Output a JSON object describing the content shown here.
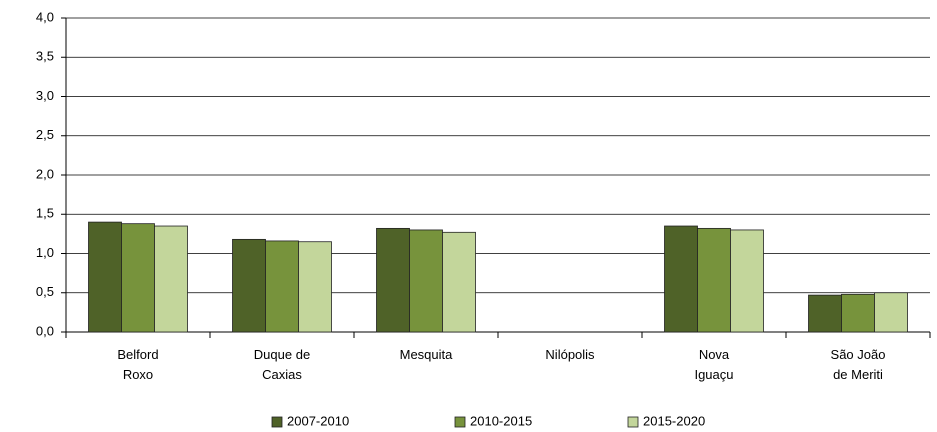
{
  "chart_data": {
    "type": "bar",
    "categories": [
      "Belford Roxo",
      "Duque de Caxias",
      "Mesquita",
      "Nilópolis",
      "Nova Iguaçu",
      "São João de Meriti"
    ],
    "series": [
      {
        "name": "2007-2010",
        "color": "#4f6228",
        "values": [
          1.4,
          1.18,
          1.32,
          null,
          1.35,
          0.47
        ]
      },
      {
        "name": "2010-2015",
        "color": "#77933c",
        "values": [
          1.38,
          1.16,
          1.3,
          null,
          1.32,
          0.48
        ]
      },
      {
        "name": "2015-2020",
        "color": "#c3d69b",
        "values": [
          1.35,
          1.15,
          1.27,
          null,
          1.3,
          0.5
        ]
      }
    ],
    "ylim": [
      0,
      4
    ],
    "yticks": [
      {
        "value": 0,
        "label": "0,0"
      },
      {
        "value": 0.5,
        "label": "0,5"
      },
      {
        "value": 1,
        "label": "1,0"
      },
      {
        "value": 1.5,
        "label": "1,5"
      },
      {
        "value": 2,
        "label": "2,0"
      },
      {
        "value": 2.5,
        "label": "2,5"
      },
      {
        "value": 3,
        "label": "3,0"
      },
      {
        "value": 3.5,
        "label": "3,5"
      },
      {
        "value": 4,
        "label": "4,0"
      }
    ],
    "grid": true,
    "legend": "bottom"
  }
}
